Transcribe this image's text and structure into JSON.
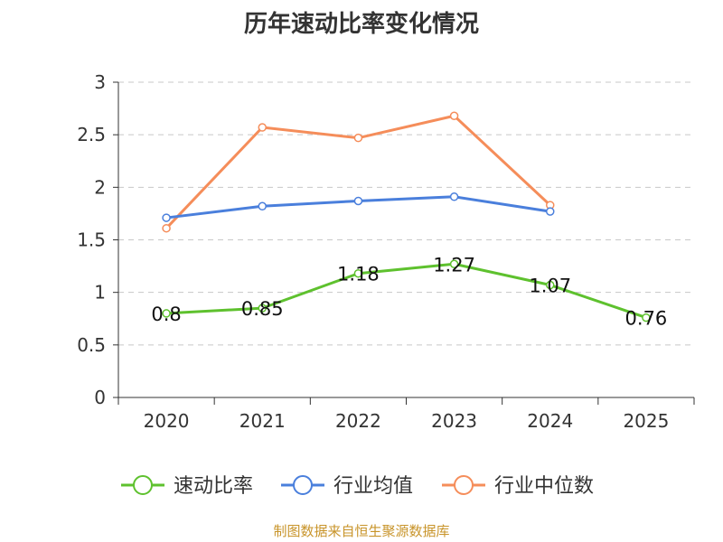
{
  "chart_data": {
    "type": "line",
    "title": "历年速动比率变化情况",
    "categories": [
      "2020",
      "2021",
      "2022",
      "2023",
      "2024",
      "2025"
    ],
    "ylim": [
      0,
      3
    ],
    "yticks": [
      "0",
      "0.5",
      "1",
      "1.5",
      "2",
      "2.5",
      "3"
    ],
    "grid": "horizontal-dashed",
    "legend_position": "bottom",
    "series": [
      {
        "name": "速动比率",
        "color": "#5ec12e",
        "labeled": true,
        "values": [
          0.8,
          0.85,
          1.18,
          1.27,
          1.07,
          0.76
        ],
        "labels": [
          "0.8",
          "0.85",
          "1.18",
          "1.27",
          "1.07",
          "0.76"
        ]
      },
      {
        "name": "行业均值",
        "color": "#4a7fdc",
        "labeled": false,
        "values": [
          1.71,
          1.82,
          1.87,
          1.91,
          1.77,
          null
        ]
      },
      {
        "name": "行业中位数",
        "color": "#f58d5a",
        "labeled": false,
        "values": [
          1.61,
          2.57,
          2.47,
          2.68,
          1.83,
          null
        ]
      }
    ],
    "source": "制图数据来自恒生聚源数据库"
  }
}
